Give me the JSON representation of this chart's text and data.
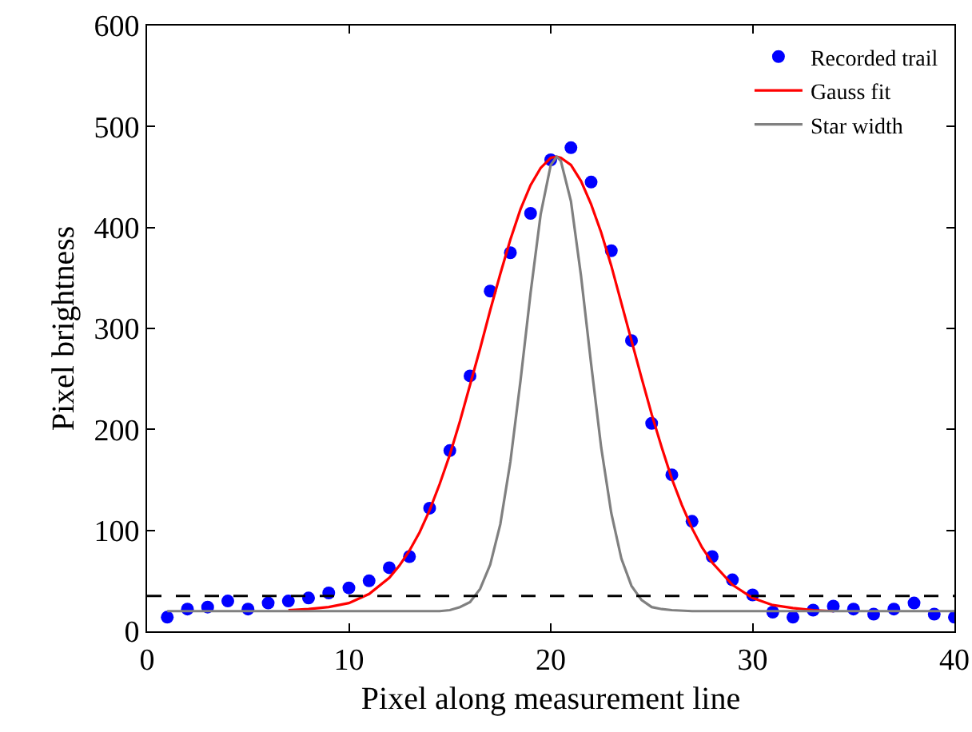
{
  "chart_data": {
    "type": "scatter",
    "xlabel": "Pixel along measurement line",
    "ylabel": "Pixel brightness",
    "xlim": [
      0,
      40
    ],
    "xticks": [
      0,
      10,
      20,
      30,
      40
    ],
    "ylim": [
      0,
      600
    ],
    "yticks": [
      0,
      100,
      200,
      300,
      400,
      500,
      600
    ],
    "grid": false,
    "legend": "top right",
    "series": [
      {
        "name": "Recorded trail",
        "marker": "circle",
        "color": "#0000ff",
        "x": [
          1,
          2,
          3,
          4,
          5,
          6,
          7,
          8,
          9,
          10,
          11,
          12,
          13,
          14,
          15,
          16,
          17,
          18,
          19,
          20,
          21,
          22,
          23,
          24,
          25,
          26,
          27,
          28,
          29,
          30,
          31,
          32,
          33,
          34,
          35,
          36,
          37,
          38,
          39,
          40
        ],
        "values": [
          14,
          22,
          24,
          30,
          22,
          28,
          30,
          33,
          38,
          43,
          50,
          63,
          74,
          122,
          179,
          253,
          337,
          375,
          414,
          467,
          479,
          445,
          377,
          288,
          206,
          155,
          109,
          74,
          51,
          36,
          19,
          14,
          21,
          25,
          22,
          17,
          22,
          28,
          17,
          14
        ]
      },
      {
        "name": "Gauss fit",
        "type": "line",
        "marker": "none",
        "color": "#ff0000",
        "x": [
          7,
          8,
          9,
          10,
          11,
          12,
          12.5,
          13,
          13.5,
          14,
          14.5,
          15,
          15.5,
          16,
          16.5,
          17,
          17.5,
          18,
          18.5,
          19,
          19.5,
          20,
          20.3,
          20.5,
          21,
          21.5,
          22,
          22.5,
          23,
          23.5,
          24,
          24.5,
          25,
          25.5,
          26,
          26.5,
          27,
          27.5,
          28,
          29,
          30,
          31,
          32,
          33,
          34
        ],
        "values": [
          21,
          22,
          24,
          28,
          37,
          53,
          65,
          80,
          98,
          120,
          146,
          175,
          208,
          244,
          280,
          318,
          354,
          388,
          418,
          442,
          459,
          469,
          470,
          469,
          462,
          446,
          423,
          395,
          362,
          325,
          288,
          251,
          215,
          182,
          151,
          125,
          102,
          83,
          68,
          46,
          33,
          26,
          23,
          21,
          20
        ]
      },
      {
        "name": "Star width",
        "type": "line",
        "marker": "none",
        "color": "#808080",
        "x": [
          1,
          14.5,
          15,
          15.5,
          16,
          16.5,
          17,
          17.5,
          18,
          18.5,
          19,
          19.5,
          20,
          20.3,
          20.5,
          21,
          21.5,
          22,
          22.5,
          23,
          23.5,
          24,
          24.5,
          25,
          25.5,
          26,
          27,
          40
        ],
        "values": [
          20,
          20,
          21,
          24,
          29,
          42,
          66,
          106,
          168,
          248,
          335,
          413,
          462,
          470,
          466,
          426,
          352,
          265,
          182,
          117,
          72,
          45,
          31,
          24,
          22,
          21,
          20,
          20
        ]
      }
    ],
    "ref_lines": [
      {
        "axis": "y",
        "value": 35,
        "color": "#000000",
        "line_style": "dashed"
      }
    ]
  }
}
